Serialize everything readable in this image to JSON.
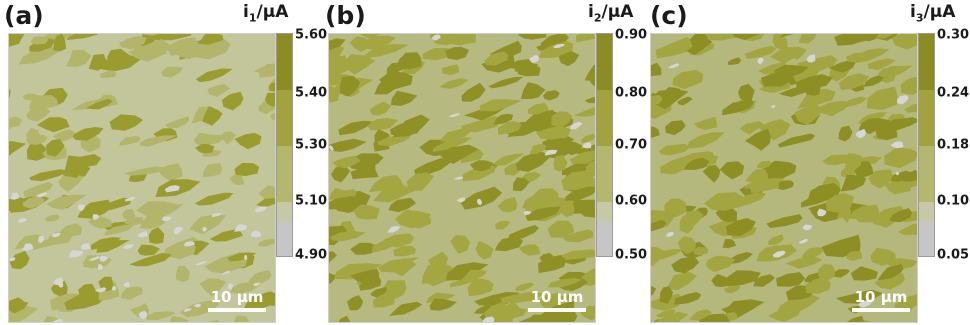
{
  "panels": [
    {
      "label": "(a)",
      "unit_base": "i",
      "unit_sub": "1",
      "unit_tail": "/μA",
      "scale_bar": "10 μm",
      "colorbar_ticks": [
        "5.60",
        "5.40",
        "5.30",
        "5.10",
        "4.90"
      ],
      "colorbar_colors": [
        "#8c8c24",
        "#a2a23e",
        "#b4b76e",
        "#c7c9a6",
        "#c6c6c6"
      ],
      "pattern_colors": [
        "#c2c69a",
        "#b2b56a",
        "#9b9c30",
        "#d6d6d6"
      ]
    },
    {
      "label": "(b)",
      "unit_base": "i",
      "unit_sub": "2",
      "unit_tail": "/μA",
      "scale_bar": "10 μm",
      "colorbar_ticks": [
        "0.90",
        "0.80",
        "0.70",
        "0.60",
        "0.50"
      ],
      "colorbar_colors": [
        "#8c8c24",
        "#a2a23e",
        "#b4b76e",
        "#c7c9a6",
        "#c6c6c6"
      ],
      "pattern_colors": [
        "#b6ba80",
        "#a4a642",
        "#8f9026",
        "#d6d6d6"
      ]
    },
    {
      "label": "(c)",
      "unit_base": "i",
      "unit_sub": "3",
      "unit_tail": "/μA",
      "scale_bar": "10 μm",
      "colorbar_ticks": [
        "0.30",
        "0.24",
        "0.18",
        "0.10",
        "0.05"
      ],
      "colorbar_colors": [
        "#8c8c24",
        "#a2a23e",
        "#b4b76e",
        "#c7c9a6",
        "#c6c6c6"
      ],
      "pattern_colors": [
        "#b4b87c",
        "#a3a540",
        "#8d8e24",
        "#d6d6d6"
      ]
    }
  ]
}
